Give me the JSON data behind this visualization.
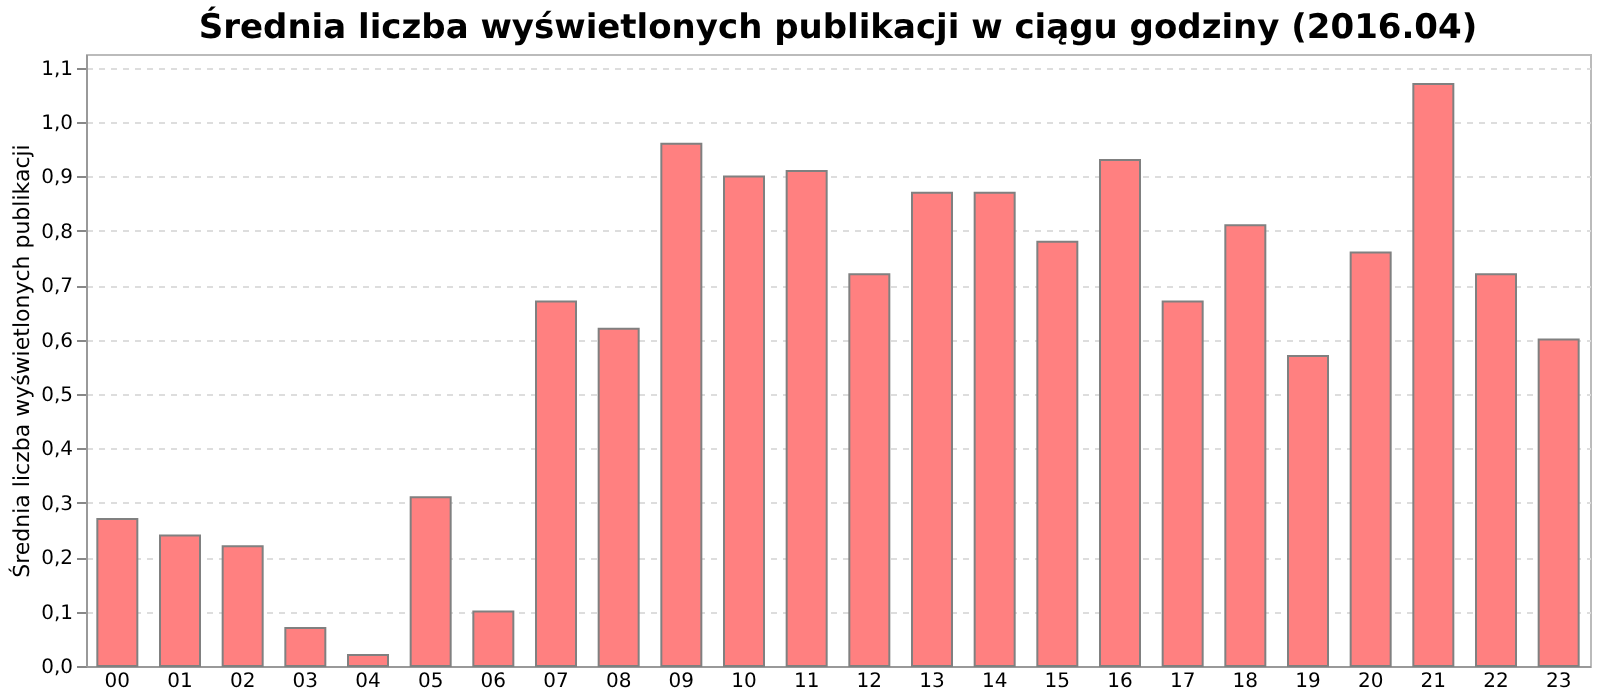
{
  "chart_data": {
    "type": "bar",
    "title": "Średnia liczba wyświetlonych publikacji w ciągu godziny (2016.04)",
    "ylabel": "Średnia liczba wyświetlonych publikacji",
    "categories": [
      "00",
      "01",
      "02",
      "03",
      "04",
      "05",
      "06",
      "07",
      "08",
      "09",
      "10",
      "11",
      "12",
      "13",
      "14",
      "15",
      "16",
      "17",
      "18",
      "19",
      "20",
      "21",
      "22",
      "23"
    ],
    "values": [
      0.27,
      0.24,
      0.22,
      0.07,
      0.02,
      0.31,
      0.1,
      0.67,
      0.62,
      0.96,
      0.9,
      0.91,
      0.72,
      0.87,
      0.87,
      0.78,
      0.93,
      0.67,
      0.81,
      0.57,
      0.76,
      1.07,
      0.72,
      0.6
    ],
    "color": "#ff8080",
    "ylim": [
      0,
      1.125
    ],
    "yticks": [
      {
        "value": 0,
        "label": "0,0"
      },
      {
        "value": 0.1,
        "label": "0,1"
      },
      {
        "value": 0.2,
        "label": "0,2"
      },
      {
        "value": 0.3,
        "label": "0,3"
      },
      {
        "value": 0.4,
        "label": "0,4"
      },
      {
        "value": 0.5,
        "label": "0,5"
      },
      {
        "value": 0.6,
        "label": "0,6"
      },
      {
        "value": 0.7,
        "label": "0,7"
      },
      {
        "value": 0.8,
        "label": "0,8"
      },
      {
        "value": 0.9,
        "label": "0,9"
      },
      {
        "value": 1.0,
        "label": "1,0"
      },
      {
        "value": 1.1,
        "label": "1,1"
      }
    ],
    "grid": "y"
  }
}
